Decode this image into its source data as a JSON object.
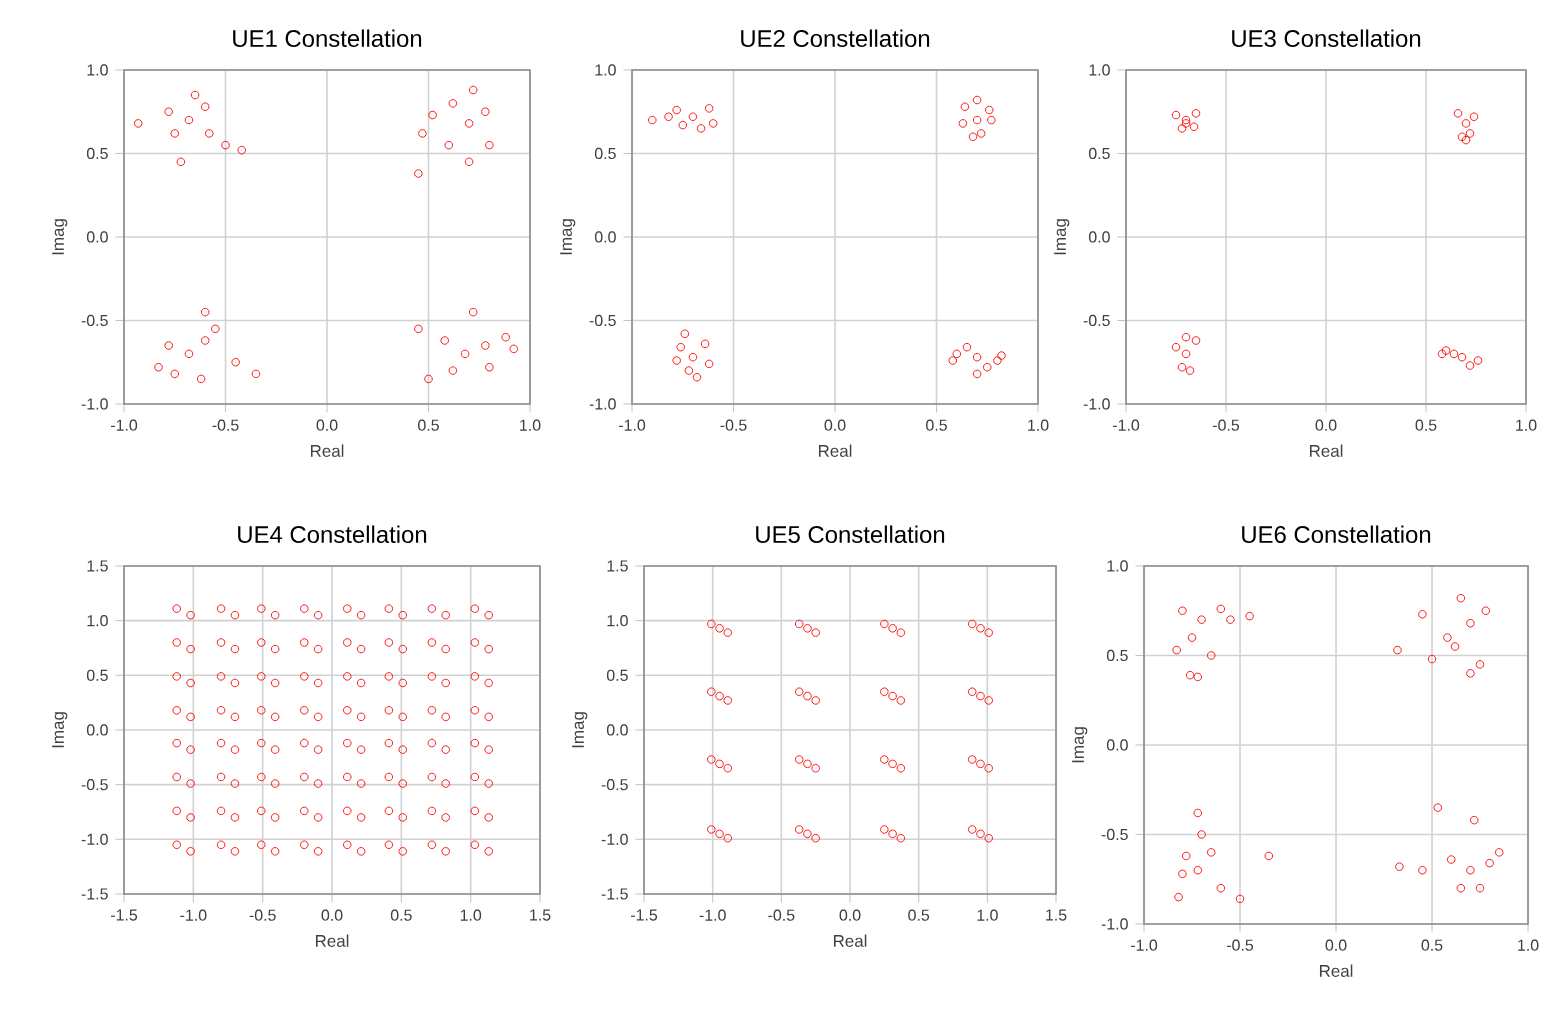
{
  "chart_data": [
    {
      "type": "scatter",
      "title": "UE1 Constellation",
      "xlabel": "Real",
      "ylabel": "Imag",
      "color": "#ff0000",
      "marker": "circle",
      "grid": true,
      "xlim": [
        -1,
        1
      ],
      "ylim": [
        -1,
        1
      ],
      "xticks": [
        {
          "value": -1,
          "label": "-1.0"
        },
        -0.5,
        {
          "value": 0,
          "label": "0.0"
        },
        0.5,
        {
          "value": 1,
          "label": "1.0"
        }
      ],
      "yticks": [
        {
          "value": -1,
          "label": "-1.0"
        },
        -0.5,
        {
          "value": 0,
          "label": "0.0"
        },
        0.5,
        {
          "value": 1,
          "label": "1.0"
        }
      ],
      "x": [
        -0.68,
        -0.78,
        -0.6,
        -0.75,
        -0.58,
        -0.5,
        -0.42,
        -0.93,
        -0.72,
        -0.65,
        0.7,
        0.62,
        0.78,
        0.6,
        0.8,
        0.7,
        0.47,
        0.45,
        0.52,
        0.72,
        -0.68,
        -0.78,
        -0.6,
        -0.75,
        -0.62,
        -0.55,
        -0.6,
        -0.45,
        -0.35,
        -0.83,
        0.68,
        0.58,
        0.78,
        0.62,
        0.8,
        0.45,
        0.5,
        0.72,
        0.88,
        0.92
      ],
      "values": [
        0.7,
        0.75,
        0.78,
        0.62,
        0.62,
        0.55,
        0.52,
        0.68,
        0.45,
        0.85,
        0.68,
        0.8,
        0.75,
        0.55,
        0.55,
        0.45,
        0.62,
        0.38,
        0.73,
        0.88,
        -0.7,
        -0.65,
        -0.62,
        -0.82,
        -0.85,
        -0.55,
        -0.45,
        -0.75,
        -0.82,
        -0.78,
        -0.7,
        -0.62,
        -0.65,
        -0.8,
        -0.78,
        -0.55,
        -0.85,
        -0.45,
        -0.6,
        -0.67
      ]
    },
    {
      "type": "scatter",
      "title": "UE2 Constellation",
      "xlabel": "Real",
      "ylabel": "Imag",
      "color": "#ff0000",
      "marker": "circle",
      "grid": true,
      "xlim": [
        -1,
        1
      ],
      "ylim": [
        -1,
        1
      ],
      "xticks": [
        {
          "value": -1,
          "label": "-1.0"
        },
        -0.5,
        {
          "value": 0,
          "label": "0.0"
        },
        0.5,
        {
          "value": 1,
          "label": "1.0"
        }
      ],
      "yticks": [
        {
          "value": -1,
          "label": "-1.0"
        },
        -0.5,
        {
          "value": 0,
          "label": "0.0"
        },
        0.5,
        {
          "value": 1,
          "label": "1.0"
        }
      ],
      "x": [
        -0.7,
        -0.78,
        -0.62,
        -0.75,
        -0.6,
        -0.82,
        -0.66,
        -0.9,
        0.7,
        0.64,
        0.76,
        0.68,
        0.72,
        0.63,
        0.77,
        0.7,
        -0.7,
        -0.76,
        -0.64,
        -0.72,
        -0.68,
        -0.74,
        -0.62,
        -0.78,
        0.7,
        0.6,
        0.8,
        0.65,
        0.75,
        0.58,
        0.82,
        0.7
      ],
      "values": [
        0.72,
        0.76,
        0.77,
        0.67,
        0.68,
        0.72,
        0.65,
        0.7,
        0.7,
        0.78,
        0.76,
        0.6,
        0.62,
        0.68,
        0.7,
        0.82,
        -0.72,
        -0.66,
        -0.64,
        -0.8,
        -0.84,
        -0.58,
        -0.76,
        -0.74,
        -0.72,
        -0.7,
        -0.74,
        -0.66,
        -0.78,
        -0.74,
        -0.71,
        -0.82
      ]
    },
    {
      "type": "scatter",
      "title": "UE3 Constellation",
      "xlabel": "Real",
      "ylabel": "Imag",
      "color": "#ff0000",
      "marker": "circle",
      "grid": true,
      "xlim": [
        -1,
        1
      ],
      "ylim": [
        -1,
        1
      ],
      "xticks": [
        {
          "value": -1,
          "label": "-1.0"
        },
        -0.5,
        {
          "value": 0,
          "label": "0.0"
        },
        0.5,
        {
          "value": 1,
          "label": "1.0"
        }
      ],
      "yticks": [
        {
          "value": -1,
          "label": "-1.0"
        },
        -0.5,
        {
          "value": 0,
          "label": "0.0"
        },
        0.5,
        {
          "value": 1,
          "label": "1.0"
        }
      ],
      "x": [
        -0.7,
        -0.75,
        -0.65,
        -0.72,
        -0.66,
        -0.7,
        0.7,
        0.66,
        0.74,
        0.68,
        0.72,
        0.7,
        -0.7,
        -0.75,
        -0.65,
        -0.72,
        -0.68,
        -0.7,
        0.68,
        0.6,
        0.76,
        0.64,
        0.72,
        0.58
      ],
      "values": [
        0.7,
        0.73,
        0.74,
        0.65,
        0.66,
        0.68,
        0.68,
        0.74,
        0.72,
        0.6,
        0.62,
        0.58,
        -0.7,
        -0.66,
        -0.62,
        -0.78,
        -0.8,
        -0.6,
        -0.72,
        -0.68,
        -0.74,
        -0.7,
        -0.77,
        -0.7
      ]
    },
    {
      "type": "scatter",
      "title": "UE4 Constellation",
      "xlabel": "Real",
      "ylabel": "Imag",
      "color": "#ff0000",
      "marker": "circle",
      "grid": true,
      "xlim": [
        -1.5,
        1.5
      ],
      "ylim": [
        -1.5,
        1.5
      ],
      "xticks": [
        {
          "value": -1.5,
          "label": "-1.5"
        },
        {
          "value": -1,
          "label": "-1.0"
        },
        -0.5,
        {
          "value": 0,
          "label": "0.0"
        },
        0.5,
        {
          "value": 1,
          "label": "1.0"
        },
        1.5
      ],
      "yticks": [
        -1.5,
        {
          "value": -1,
          "label": "-1.0"
        },
        -0.5,
        {
          "value": 0,
          "label": "0.0"
        },
        0.5,
        {
          "value": 1,
          "label": "1.0"
        },
        1.5
      ],
      "x": [
        -1.12,
        -1.02,
        -0.8,
        -0.7,
        -0.51,
        -0.41,
        -0.2,
        -0.1,
        0.11,
        0.21,
        0.41,
        0.51,
        0.72,
        0.82,
        1.03,
        1.13,
        -1.12,
        -1.02,
        -0.8,
        -0.7,
        -0.51,
        -0.41,
        -0.2,
        -0.1,
        0.11,
        0.21,
        0.41,
        0.51,
        0.72,
        0.82,
        1.03,
        1.13,
        -1.12,
        -1.02,
        -0.8,
        -0.7,
        -0.51,
        -0.41,
        -0.2,
        -0.1,
        0.11,
        0.21,
        0.41,
        0.51,
        0.72,
        0.82,
        1.03,
        1.13,
        -1.12,
        -1.02,
        -0.8,
        -0.7,
        -0.51,
        -0.41,
        -0.2,
        -0.1,
        0.11,
        0.21,
        0.41,
        0.51,
        0.72,
        0.82,
        1.03,
        1.13,
        -1.12,
        -1.02,
        -0.8,
        -0.7,
        -0.51,
        -0.41,
        -0.2,
        -0.1,
        0.11,
        0.21,
        0.41,
        0.51,
        0.72,
        0.82,
        1.03,
        1.13,
        -1.12,
        -1.02,
        -0.8,
        -0.7,
        -0.51,
        -0.41,
        -0.2,
        -0.1,
        0.11,
        0.21,
        0.41,
        0.51,
        0.72,
        0.82,
        1.03,
        1.13,
        -1.12,
        -1.02,
        -0.8,
        -0.7,
        -0.51,
        -0.41,
        -0.2,
        -0.1,
        0.11,
        0.21,
        0.41,
        0.51,
        0.72,
        0.82,
        1.03,
        1.13,
        -1.12,
        -1.02,
        -0.8,
        -0.7,
        -0.51,
        -0.41,
        -0.2,
        -0.1,
        0.11,
        0.21,
        0.41,
        0.51,
        0.72,
        0.82,
        1.03,
        1.13
      ],
      "values": [
        1.11,
        1.05,
        1.11,
        1.05,
        1.11,
        1.05,
        1.11,
        1.05,
        1.11,
        1.05,
        1.11,
        1.05,
        1.11,
        1.05,
        1.11,
        1.05,
        0.8,
        0.74,
        0.8,
        0.74,
        0.8,
        0.74,
        0.8,
        0.74,
        0.8,
        0.74,
        0.8,
        0.74,
        0.8,
        0.74,
        0.8,
        0.74,
        0.49,
        0.43,
        0.49,
        0.43,
        0.49,
        0.43,
        0.49,
        0.43,
        0.49,
        0.43,
        0.49,
        0.43,
        0.49,
        0.43,
        0.49,
        0.43,
        0.18,
        0.12,
        0.18,
        0.12,
        0.18,
        0.12,
        0.18,
        0.12,
        0.18,
        0.12,
        0.18,
        0.12,
        0.18,
        0.12,
        0.18,
        0.12,
        -0.12,
        -0.18,
        -0.12,
        -0.18,
        -0.12,
        -0.18,
        -0.12,
        -0.18,
        -0.12,
        -0.18,
        -0.12,
        -0.18,
        -0.12,
        -0.18,
        -0.12,
        -0.18,
        -0.43,
        -0.49,
        -0.43,
        -0.49,
        -0.43,
        -0.49,
        -0.43,
        -0.49,
        -0.43,
        -0.49,
        -0.43,
        -0.49,
        -0.43,
        -0.49,
        -0.43,
        -0.49,
        -0.74,
        -0.8,
        -0.74,
        -0.8,
        -0.74,
        -0.8,
        -0.74,
        -0.8,
        -0.74,
        -0.8,
        -0.74,
        -0.8,
        -0.74,
        -0.8,
        -0.74,
        -0.8,
        -1.05,
        -1.11,
        -1.05,
        -1.11,
        -1.05,
        -1.11,
        -1.05,
        -1.11,
        -1.05,
        -1.11,
        -1.05,
        -1.11,
        -1.05,
        -1.11,
        -1.05,
        -1.11
      ]
    },
    {
      "type": "scatter",
      "title": "UE5 Constellation",
      "xlabel": "Real",
      "ylabel": "Imag",
      "color": "#ff0000",
      "marker": "circle",
      "grid": true,
      "xlim": [
        -1.5,
        1.5
      ],
      "ylim": [
        -1.5,
        1.5
      ],
      "xticks": [
        {
          "value": -1.5,
          "label": "-1.5"
        },
        {
          "value": -1,
          "label": "-1.0"
        },
        -0.5,
        {
          "value": 0,
          "label": "0.0"
        },
        0.5,
        {
          "value": 1,
          "label": "1.0"
        },
        1.5
      ],
      "yticks": [
        -1.5,
        {
          "value": -1,
          "label": "-1.0"
        },
        -0.5,
        {
          "value": 0,
          "label": "0.0"
        },
        0.5,
        {
          "value": 1,
          "label": "1.0"
        },
        1.5
      ],
      "x": [
        -0.95,
        -1.01,
        -0.89,
        -0.31,
        -0.37,
        -0.25,
        0.31,
        0.25,
        0.37,
        0.95,
        0.89,
        1.01,
        -0.95,
        -1.01,
        -0.89,
        -0.31,
        -0.37,
        -0.25,
        0.31,
        0.25,
        0.37,
        0.95,
        0.89,
        1.01,
        -0.95,
        -1.01,
        -0.89,
        -0.31,
        -0.37,
        -0.25,
        0.31,
        0.25,
        0.37,
        0.95,
        0.89,
        1.01,
        -0.95,
        -1.01,
        -0.89,
        -0.31,
        -0.37,
        -0.25,
        0.31,
        0.25,
        0.37,
        0.95,
        0.89,
        1.01
      ],
      "values": [
        0.93,
        0.97,
        0.89,
        0.93,
        0.97,
        0.89,
        0.93,
        0.97,
        0.89,
        0.93,
        0.97,
        0.89,
        0.31,
        0.35,
        0.27,
        0.31,
        0.35,
        0.27,
        0.31,
        0.35,
        0.27,
        0.31,
        0.35,
        0.27,
        -0.31,
        -0.27,
        -0.35,
        -0.31,
        -0.27,
        -0.35,
        -0.31,
        -0.27,
        -0.35,
        -0.31,
        -0.27,
        -0.35,
        -0.95,
        -0.91,
        -0.99,
        -0.95,
        -0.91,
        -0.99,
        -0.95,
        -0.91,
        -0.99,
        -0.95,
        -0.91,
        -0.99
      ]
    },
    {
      "type": "scatter",
      "title": "UE6 Constellation",
      "xlabel": "Real",
      "ylabel": "Imag",
      "color": "#ff0000",
      "marker": "circle",
      "grid": true,
      "xlim": [
        -1,
        1
      ],
      "ylim": [
        -1,
        1
      ],
      "xticks": [
        {
          "value": -1,
          "label": "-1.0"
        },
        -0.5,
        {
          "value": 0,
          "label": "0.0"
        },
        0.5,
        {
          "value": 1,
          "label": "1.0"
        }
      ],
      "yticks": [
        {
          "value": -1,
          "label": "-1.0"
        },
        -0.5,
        {
          "value": 0,
          "label": "0.0"
        },
        0.5,
        {
          "value": 1,
          "label": "1.0"
        }
      ],
      "x": [
        -0.7,
        -0.8,
        -0.6,
        -0.75,
        -0.55,
        -0.45,
        -0.83,
        -0.72,
        -0.76,
        -0.65,
        0.7,
        0.65,
        0.78,
        0.62,
        0.75,
        0.7,
        0.32,
        0.45,
        0.5,
        0.58,
        -0.72,
        -0.78,
        -0.65,
        -0.72,
        -0.82,
        -0.6,
        -0.35,
        -0.5,
        -0.7,
        -0.8,
        0.7,
        0.6,
        0.8,
        0.65,
        0.85,
        0.53,
        0.33,
        0.72,
        0.45,
        0.75
      ],
      "values": [
        0.7,
        0.75,
        0.76,
        0.6,
        0.7,
        0.72,
        0.53,
        0.38,
        0.39,
        0.5,
        0.68,
        0.82,
        0.75,
        0.55,
        0.45,
        0.4,
        0.53,
        0.73,
        0.48,
        0.6,
        -0.7,
        -0.62,
        -0.6,
        -0.38,
        -0.85,
        -0.8,
        -0.62,
        -0.86,
        -0.5,
        -0.72,
        -0.7,
        -0.64,
        -0.66,
        -0.8,
        -0.6,
        -0.35,
        -0.68,
        -0.42,
        -0.7,
        -0.8
      ]
    }
  ]
}
